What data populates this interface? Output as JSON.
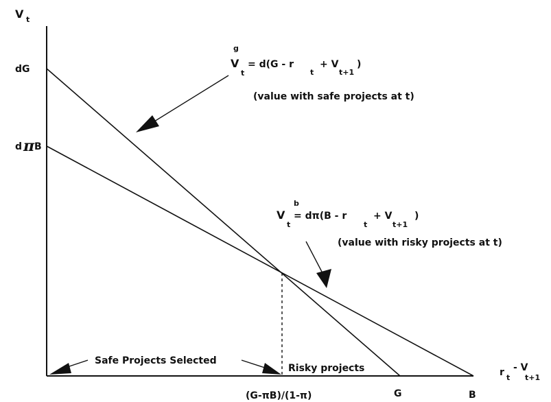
{
  "axes": {
    "y_label": "V",
    "y_label_sub": "t",
    "x_label": "r",
    "x_label_sub1": "t",
    "x_label_mid": "- V",
    "x_label_sub2": "t+1"
  },
  "y_ticks": {
    "dG": "dG",
    "dpiB_d": "d",
    "dpiB_pi": "π",
    "dpiB_B": "B"
  },
  "x_ticks": {
    "crossover": "(G-πB)/(1-π)",
    "G": "G",
    "B": "B"
  },
  "safe_line": {
    "eq_V": "V",
    "eq_sup": "g",
    "eq_sub": "t",
    "eq_body": "= d(G - r",
    "eq_sub2": "t",
    "eq_plus": "+ V",
    "eq_sub3": "t+1",
    "eq_close": ")",
    "caption": "(value with safe projects at t)"
  },
  "risky_line": {
    "eq_V": "V",
    "eq_sup": "b",
    "eq_sub": "t",
    "eq_body": "= dπ(B - r",
    "eq_sub2": "t",
    "eq_plus": "+ V",
    "eq_sub3": "t+1",
    "eq_close": ")",
    "caption": "(value with risky projects at t)"
  },
  "regions": {
    "safe": "Safe Projects Selected",
    "risky": "Risky projects"
  }
}
